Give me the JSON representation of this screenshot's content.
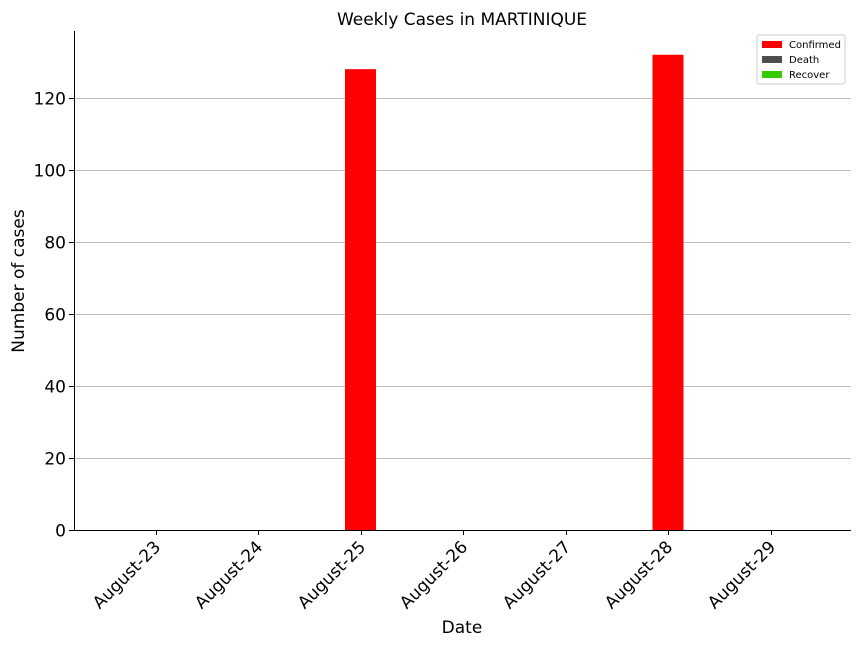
{
  "chart_data": {
    "type": "bar",
    "title": "Weekly Cases in MARTINIQUE",
    "xlabel": "Date",
    "ylabel": "Number of cases",
    "categories": [
      "August-23",
      "August-24",
      "August-25",
      "August-26",
      "August-27",
      "August-28",
      "August-29"
    ],
    "series": [
      {
        "name": "Confirmed",
        "color": "#ff0000",
        "values": [
          0,
          0,
          128,
          0,
          0,
          132,
          0
        ]
      },
      {
        "name": "Death",
        "color": "#4d4d4d",
        "values": [
          0,
          0,
          0,
          0,
          0,
          0,
          0
        ]
      },
      {
        "name": "Recover",
        "color": "#33cc00",
        "values": [
          0,
          0,
          0,
          0,
          0,
          0,
          0
        ]
      }
    ],
    "ylim": [
      0,
      138.6
    ],
    "yticks": [
      0,
      20,
      40,
      60,
      80,
      100,
      120
    ],
    "grid": "horizontal",
    "legend_position": "top-right"
  }
}
